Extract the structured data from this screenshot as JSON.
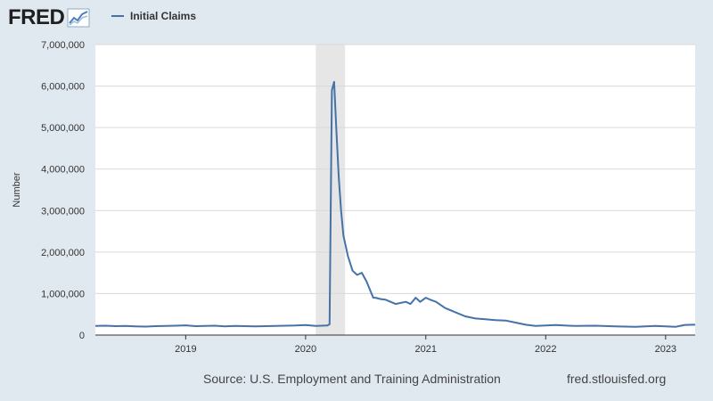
{
  "brand": {
    "logo_text": "FRED"
  },
  "legend": {
    "label": "Initial Claims",
    "color": "#4572a7"
  },
  "footer": {
    "source": "Source: U.S. Employment and Training Administration",
    "url": "fred.stlouisfed.org"
  },
  "colors": {
    "background": "#e1e9f0",
    "plot": "#ffffff",
    "grid": "#d9d9d9",
    "recession": "#e6e6e6",
    "line": "#4572a7"
  },
  "chart_data": {
    "type": "line",
    "title": "",
    "ylabel": "Number",
    "xlabel": "",
    "ylim": [
      0,
      7000000
    ],
    "xlim": [
      "2018-04-01",
      "2023-04-01"
    ],
    "grid": true,
    "legend_position": "top-left",
    "yticks": [
      0,
      1000000,
      2000000,
      3000000,
      4000000,
      5000000,
      6000000,
      7000000
    ],
    "ytick_labels": [
      "0",
      "1,000,000",
      "2,000,000",
      "3,000,000",
      "4,000,000",
      "5,000,000",
      "6,000,000",
      "7,000,000"
    ],
    "xticks": [
      "2019-01-01",
      "2020-01-01",
      "2021-01-01",
      "2022-01-01",
      "2023-01-01"
    ],
    "xtick_labels": [
      "2019",
      "2020",
      "2021",
      "2022",
      "2023"
    ],
    "recessions": [
      {
        "start": "2020-02-01",
        "end": "2020-04-30"
      }
    ],
    "series": [
      {
        "name": "Initial Claims",
        "x": [
          "2018-04-01",
          "2018-05-01",
          "2018-06-01",
          "2018-07-01",
          "2018-08-01",
          "2018-09-01",
          "2018-10-01",
          "2018-11-01",
          "2018-12-01",
          "2019-01-01",
          "2019-02-01",
          "2019-03-01",
          "2019-04-01",
          "2019-05-01",
          "2019-06-01",
          "2019-07-01",
          "2019-08-01",
          "2019-09-01",
          "2019-10-01",
          "2019-11-01",
          "2019-12-01",
          "2020-01-01",
          "2020-02-01",
          "2020-03-07",
          "2020-03-14",
          "2020-03-21",
          "2020-03-28",
          "2020-04-04",
          "2020-04-11",
          "2020-04-18",
          "2020-04-25",
          "2020-05-09",
          "2020-05-23",
          "2020-06-06",
          "2020-06-20",
          "2020-07-04",
          "2020-07-25",
          "2020-08-01",
          "2020-08-15",
          "2020-09-01",
          "2020-10-01",
          "2020-11-01",
          "2020-11-15",
          "2020-12-01",
          "2020-12-15",
          "2021-01-01",
          "2021-01-15",
          "2021-02-01",
          "2021-03-01",
          "2021-04-01",
          "2021-05-01",
          "2021-06-01",
          "2021-07-01",
          "2021-08-01",
          "2021-09-01",
          "2021-10-01",
          "2021-11-01",
          "2021-12-01",
          "2022-01-01",
          "2022-02-01",
          "2022-04-01",
          "2022-06-01",
          "2022-08-01",
          "2022-10-01",
          "2022-12-01",
          "2023-01-01",
          "2023-02-01",
          "2023-03-01",
          "2023-04-01"
        ],
        "y": [
          220000,
          225000,
          215000,
          220000,
          210000,
          205000,
          215000,
          220000,
          225000,
          235000,
          215000,
          220000,
          225000,
          210000,
          220000,
          215000,
          210000,
          215000,
          220000,
          225000,
          230000,
          240000,
          220000,
          230000,
          260000,
          5900000,
          6100000,
          4900000,
          3800000,
          3000000,
          2400000,
          1900000,
          1550000,
          1450000,
          1500000,
          1300000,
          900000,
          900000,
          870000,
          850000,
          750000,
          800000,
          750000,
          900000,
          800000,
          900000,
          850000,
          800000,
          650000,
          550000,
          450000,
          400000,
          380000,
          360000,
          350000,
          300000,
          250000,
          220000,
          230000,
          240000,
          220000,
          225000,
          210000,
          200000,
          220000,
          210000,
          200000,
          245000,
          250000
        ]
      }
    ]
  }
}
